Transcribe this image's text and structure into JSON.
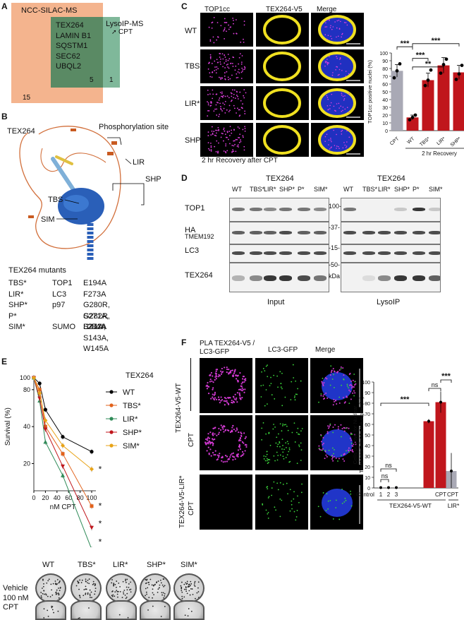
{
  "panels": {
    "a": "A",
    "b": "B",
    "c": "C",
    "d": "D",
    "e": "E",
    "f": "F"
  },
  "panel_a": {
    "set1": "NCC-SILAC-MS",
    "set2": "LysoIP-MS",
    "cpt": "CPT",
    "overlap_genes": [
      "TEX264",
      "LAMIN B1",
      "SQSTM1",
      "SEC62",
      "UBQL2"
    ],
    "n_left": "15",
    "n_mid": "5",
    "n_right": "1",
    "colors": {
      "left": "#f4b48e",
      "right": "#7fb89a",
      "overlap": "#5a8a64"
    }
  },
  "panel_b": {
    "protein": "TEX264",
    "phospho": "Phosphorylation site",
    "domains": {
      "lir": "LIR",
      "shp": "SHP",
      "tbs": "TBS",
      "sim": "SIM"
    },
    "mutants_title": "TEX264 mutants",
    "mutants": [
      {
        "name": "TBS*",
        "partner": "TOP1",
        "mut": "E194A"
      },
      {
        "name": "LIR*",
        "partner": "LC3",
        "mut": "F273A"
      },
      {
        "name": "SHP*",
        "partner": "p97",
        "mut": "G280R, G282R, L284A"
      },
      {
        "name": "P*",
        "partner": "",
        "mut": "S271A, S272A"
      },
      {
        "name": "SIM*",
        "partner": "SUMO",
        "mut": "I141A, S143A, W145A"
      }
    ]
  },
  "panel_c": {
    "cols": [
      "TOP1cc",
      "TEX264-V5",
      "Merge"
    ],
    "rows": [
      "WT",
      "TBS*",
      "LIR*",
      "SHP*"
    ],
    "caption": "2 hr Recovery after CPT",
    "chart_data": {
      "type": "bar",
      "categories": [
        "CPT",
        "WT",
        "TBS*",
        "LIR*",
        "SHP*"
      ],
      "values": [
        77,
        17,
        65,
        84,
        75
      ],
      "points": [
        [
          68,
          77,
          86
        ],
        [
          14,
          17,
          20
        ],
        [
          58,
          65,
          78
        ],
        [
          74,
          85,
          92
        ],
        [
          66,
          73,
          84
        ]
      ],
      "errors": [
        8,
        3,
        9,
        10,
        9
      ],
      "colors": [
        "#a9a9b5",
        "#c0161c",
        "#c0161c",
        "#c0161c",
        "#c0161c"
      ],
      "ylabel": "TOP1cc positive nuclei (%)",
      "ylim": [
        0,
        100
      ],
      "yticks": [
        "0",
        "10",
        "20",
        "30",
        "40",
        "50",
        "60",
        "70",
        "80",
        "90",
        "100"
      ],
      "group_label": "2 hr Recovery",
      "sig": [
        "***",
        "***",
        "**",
        "***"
      ]
    }
  },
  "panel_d": {
    "title_left": "TEX264",
    "title_right": "TEX264",
    "lanes_left": [
      "WT",
      "TBS*",
      "LIR*",
      "SHP*",
      "P*",
      "SIM*"
    ],
    "lanes_right": [
      "WT",
      "TBS*",
      "LIR*",
      "SHP*",
      "P*",
      "SIM*"
    ],
    "rows": [
      "TOP1",
      "HA",
      "TMEM192",
      "LC3",
      "TEX264"
    ],
    "markers": [
      "100-",
      "-37-",
      "-15-",
      "-50-",
      "kDa"
    ],
    "footer_left": "Input",
    "footer_right": "LysoIP"
  },
  "panel_e": {
    "legend_title": "TEX264",
    "chart_data": {
      "type": "line",
      "x": [
        0,
        10,
        20,
        50,
        100
      ],
      "series": [
        {
          "name": "WT",
          "values": [
            100,
            90,
            55,
            33,
            25
          ],
          "color": "#000000",
          "marker": "circle"
        },
        {
          "name": "TBS*",
          "values": [
            100,
            80,
            40,
            24,
            9
          ],
          "color": "#e2621b",
          "marker": "square"
        },
        {
          "name": "LIR*",
          "values": [
            100,
            65,
            30,
            16,
            4
          ],
          "color": "#2e8a57",
          "marker": "triangle"
        },
        {
          "name": "SHP*",
          "values": [
            100,
            68,
            38,
            19,
            6
          ],
          "color": "#c0161c",
          "marker": "triangle-down"
        },
        {
          "name": "SIM*",
          "values": [
            100,
            75,
            45,
            28,
            18
          ],
          "color": "#e8a317",
          "marker": "diamond"
        }
      ],
      "xlabel": "nM CPT",
      "ylabel": "Survival (%)",
      "yticks": [
        100,
        80,
        40,
        20
      ],
      "xticks": [
        0,
        20,
        40,
        60,
        80,
        100
      ],
      "yscale": "log",
      "ylim": [
        12,
        100
      ],
      "sig": [
        "*",
        "*",
        "*",
        "*"
      ]
    },
    "plates": {
      "cols": [
        "WT",
        "TBS*",
        "LIR*",
        "SHP*",
        "SIM*"
      ],
      "rows": [
        "Vehicle",
        "100 nM CPT"
      ]
    }
  },
  "panel_f": {
    "col1": "PLA TEX264-V5 / LC3-GFP",
    "col2": "LC3-GFP",
    "col3": "Merge",
    "row_wt": "TEX264-V5-WT",
    "row_lir": "TEX264-V5-LIR*",
    "cpt": "CPT",
    "chart_data": {
      "type": "bar",
      "categories": [
        "Control 1",
        "Control 2",
        "Control 3",
        "",
        "CPT",
        "CPT"
      ],
      "values": [
        0.3,
        0.3,
        0.3,
        63,
        81,
        16
      ],
      "errors": [
        0.5,
        0.5,
        0.5,
        2,
        10,
        17
      ],
      "colors": [
        "#a9a9b5",
        "#a9a9b5",
        "#a9a9b5",
        "#c0161c",
        "#c0161c",
        "#a9a9b5"
      ],
      "ylabel": "Cells positive for Nuclear TEX264-V5 /LC3 PLA signal (%)",
      "ylim": [
        0,
        100
      ],
      "yticks": [
        "0",
        "10",
        "20",
        "30",
        "40",
        "50",
        "60",
        "70",
        "80",
        "90",
        "100"
      ],
      "xlabels": [
        "Control",
        "1",
        "2",
        "3",
        "CPT",
        "CPT"
      ],
      "group_labels": [
        "TEX264-V5-WT",
        "LIR*"
      ],
      "sig": [
        "***",
        "ns",
        "***",
        "ns",
        "ns"
      ]
    }
  }
}
